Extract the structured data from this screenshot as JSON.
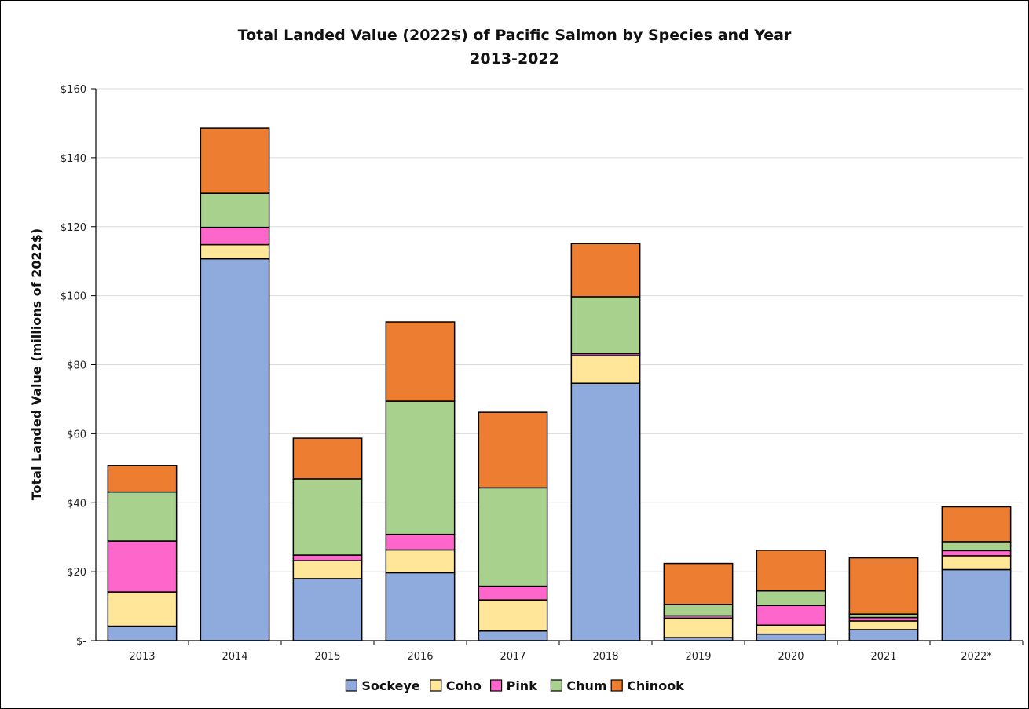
{
  "chart_data": {
    "type": "bar",
    "stacked": true,
    "title": "Total Landed Value (2022$) of Pacific Salmon by Species and Year",
    "subtitle": "2013-2022",
    "ylabel": "Total Landed Value (millions of 2022$)",
    "xlabel": "",
    "ylim": [
      0,
      160
    ],
    "yticks": [
      0,
      20,
      40,
      60,
      80,
      100,
      120,
      140,
      160
    ],
    "ytick_labels": [
      "$-",
      "$20",
      "$40",
      "$60",
      "$80",
      "$100",
      "$120",
      "$140",
      "$160"
    ],
    "grid": true,
    "legend_position": "bottom",
    "categories": [
      "2013",
      "2014",
      "2015",
      "2016",
      "2017",
      "2018",
      "2019",
      "2020",
      "2021",
      "2022*"
    ],
    "series": [
      {
        "name": "Sockeye",
        "color": "#8FAADC",
        "values": [
          4.2,
          110.7,
          18.0,
          19.7,
          2.8,
          74.6,
          0.9,
          1.9,
          3.2,
          20.6
        ]
      },
      {
        "name": "Coho",
        "color": "#FFE699",
        "values": [
          9.9,
          4.1,
          5.2,
          6.6,
          9.0,
          8.0,
          5.6,
          2.6,
          2.5,
          4.0
        ]
      },
      {
        "name": "Pink",
        "color": "#FF66CC",
        "values": [
          14.8,
          5.0,
          1.6,
          4.5,
          4.0,
          0.6,
          0.7,
          5.7,
          1.0,
          1.5
        ]
      },
      {
        "name": "Chum",
        "color": "#A9D18E",
        "values": [
          14.2,
          9.9,
          22.1,
          38.6,
          28.5,
          16.5,
          3.3,
          4.2,
          1.0,
          2.6
        ]
      },
      {
        "name": "Chinook",
        "color": "#ED7D31",
        "values": [
          7.7,
          18.9,
          11.8,
          23.0,
          21.9,
          15.4,
          11.9,
          11.8,
          16.3,
          10.1
        ]
      }
    ]
  }
}
